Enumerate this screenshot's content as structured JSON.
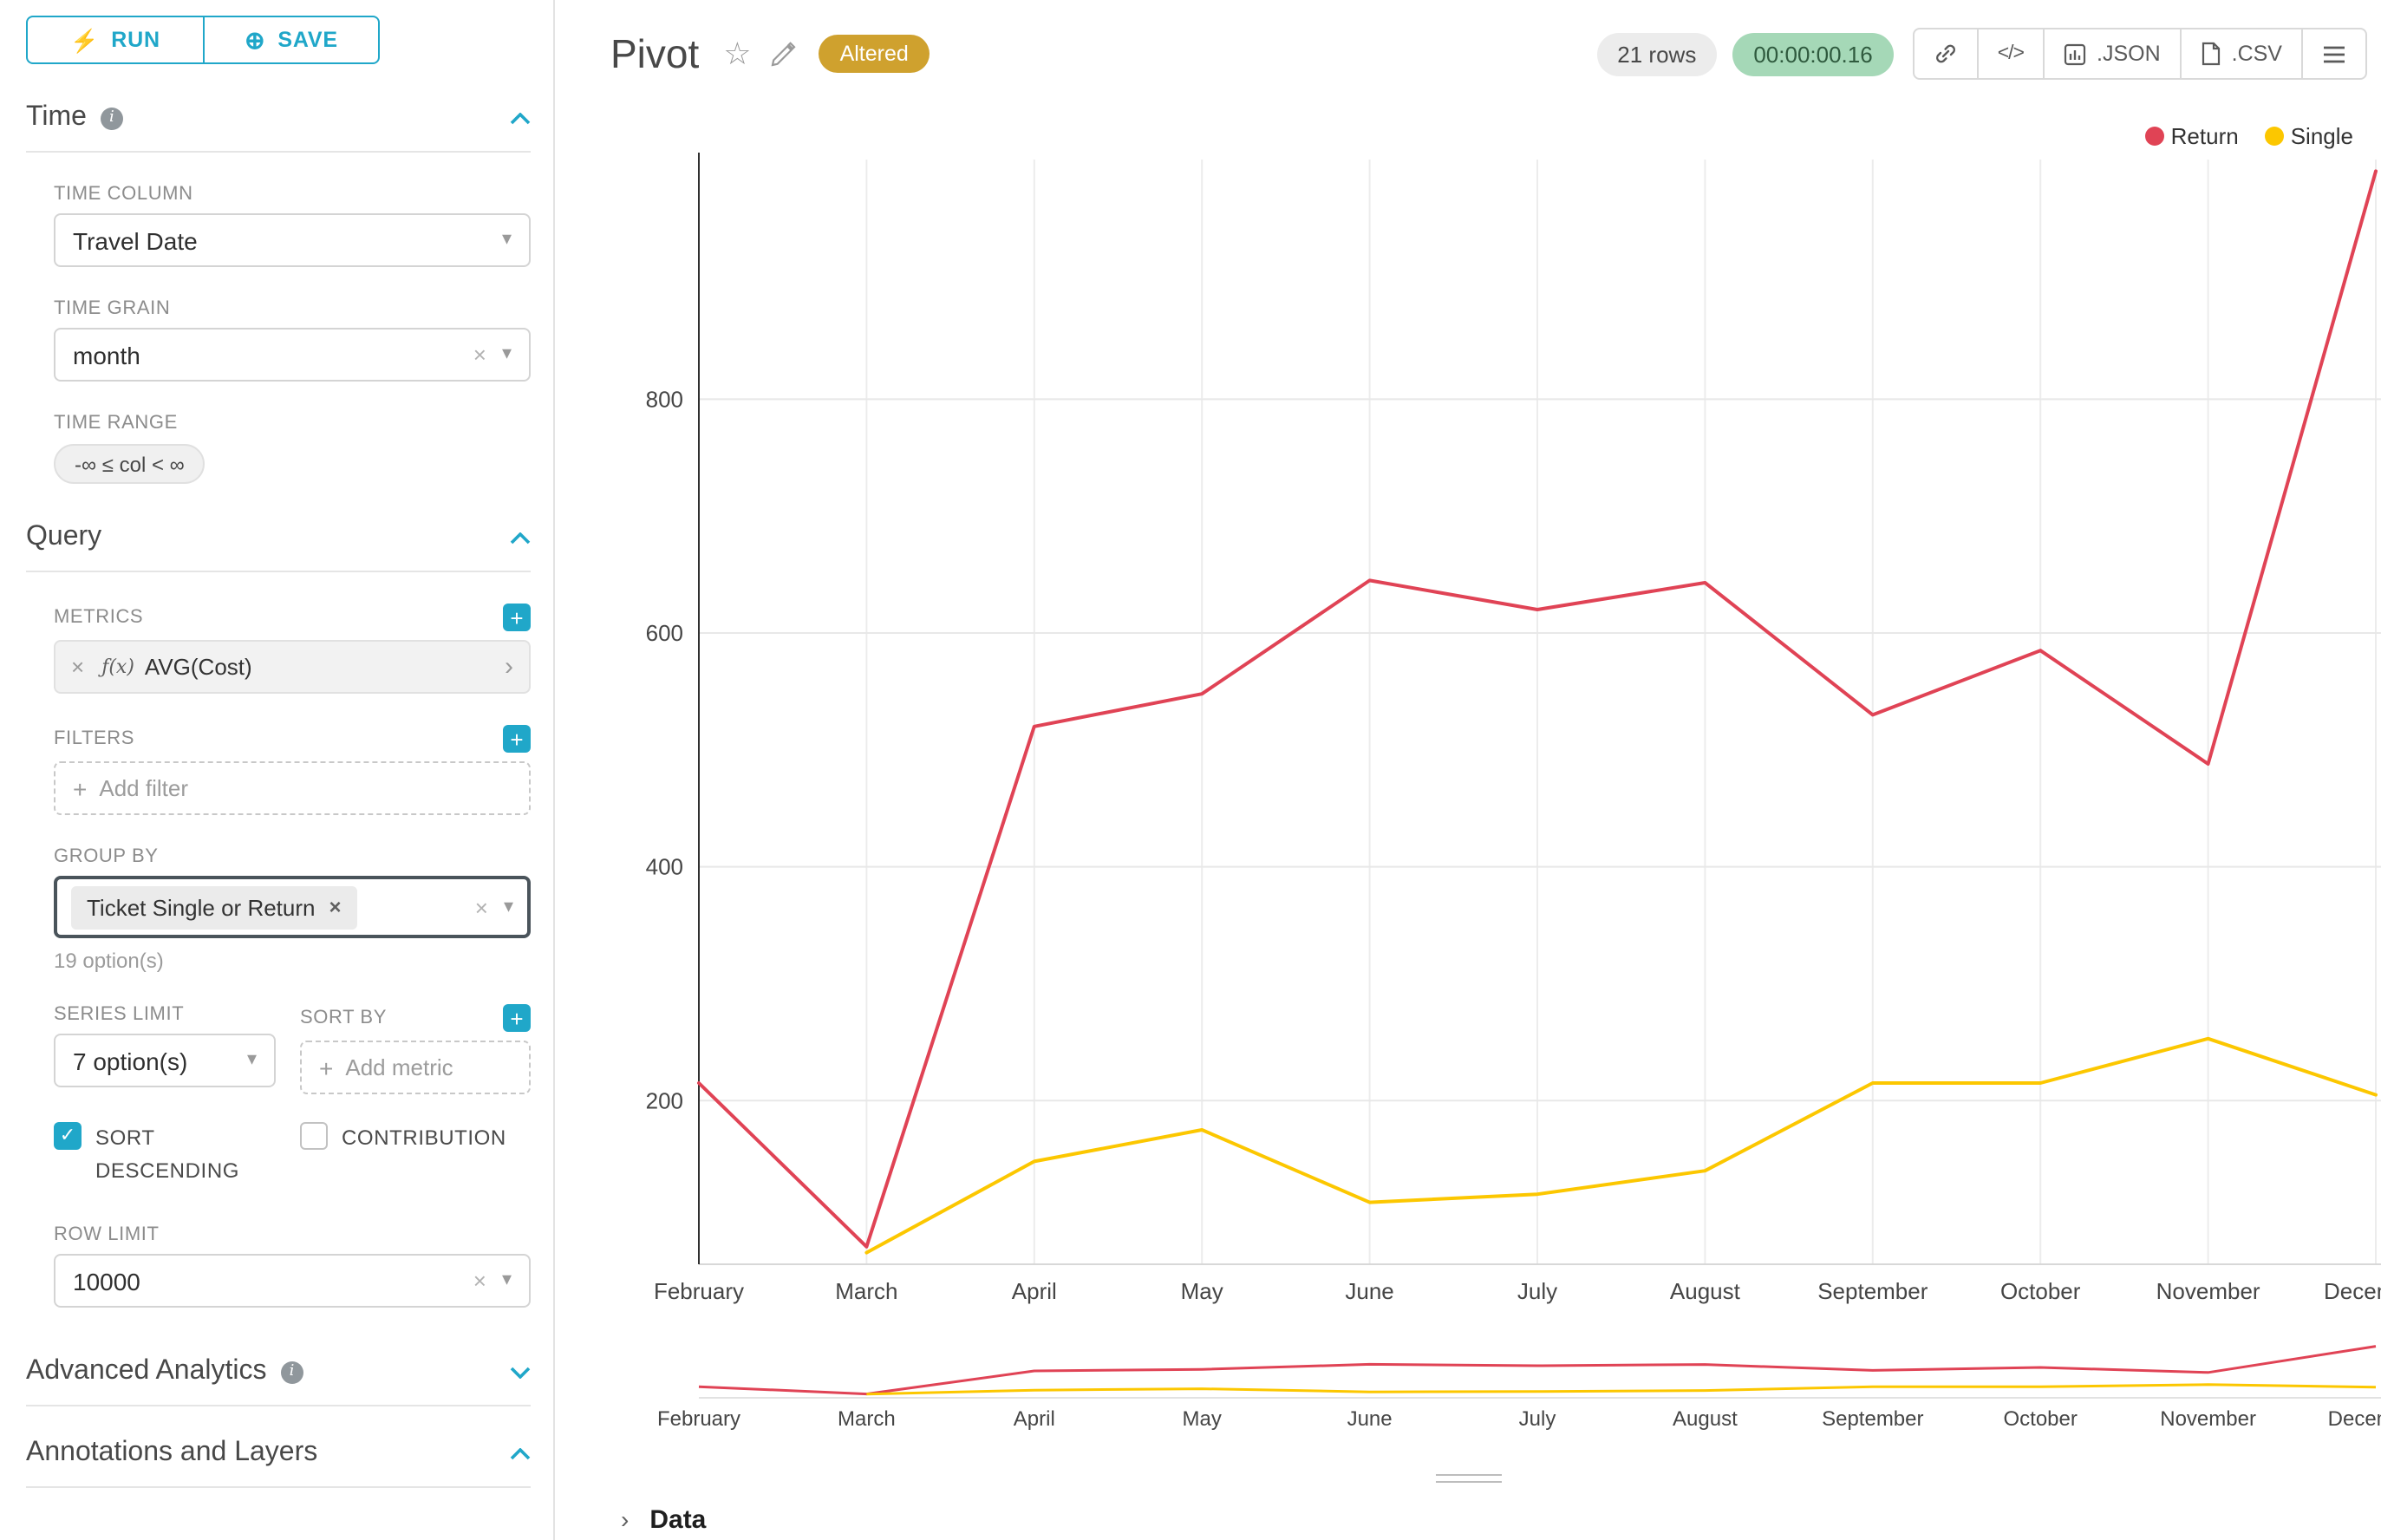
{
  "colors": {
    "accent": "#20a7c9",
    "return": "#e04355",
    "single": "#fcc700",
    "altered_badge": "#cfa12e"
  },
  "icons": {
    "lightning": "⚡",
    "save": "⊕",
    "info": "i",
    "close": "×",
    "caret_down": "▾",
    "caret_right": "›",
    "plus": "+",
    "check": "✓",
    "star": "☆",
    "code": "</>"
  },
  "sidebar": {
    "run_button": "RUN",
    "save_button": "SAVE",
    "time": {
      "title": "Time",
      "time_column_label": "TIME COLUMN",
      "time_column_value": "Travel Date",
      "time_grain_label": "TIME GRAIN",
      "time_grain_value": "month",
      "time_range_label": "TIME RANGE",
      "time_range_value": "-∞ ≤ col < ∞"
    },
    "query": {
      "title": "Query",
      "metrics_label": "METRICS",
      "metric_fx": "ƒ(x)",
      "metric_name": "AVG(Cost)",
      "filters_label": "FILTERS",
      "add_filter": "Add filter",
      "group_by_label": "GROUP BY",
      "group_by_value": "Ticket Single or Return",
      "group_by_hint": "19 option(s)",
      "series_limit_label": "SERIES LIMIT",
      "series_limit_value": "7 option(s)",
      "sort_by_label": "SORT BY",
      "add_metric": "Add metric",
      "sort_descending": "SORT DESCENDING",
      "contribution": "CONTRIBUTION",
      "row_limit_label": "ROW LIMIT",
      "row_limit_value": "10000"
    },
    "advanced_title": "Advanced Analytics",
    "annotations_title": "Annotations and Layers"
  },
  "header": {
    "title": "Pivot",
    "altered_badge": "Altered",
    "rows_badge": "21 rows",
    "timer": "00:00:00.16",
    "json_button": ".JSON",
    "csv_button": ".CSV"
  },
  "data_panel": {
    "title": "Data"
  },
  "chart_data": {
    "type": "line",
    "title": "",
    "x": [
      "February",
      "March",
      "April",
      "May",
      "June",
      "July",
      "August",
      "September",
      "October",
      "November",
      "December"
    ],
    "series": [
      {
        "name": "Return",
        "color": "#e04355",
        "values": [
          215,
          75,
          520,
          548,
          645,
          620,
          643,
          530,
          585,
          488,
          995
        ]
      },
      {
        "name": "Single",
        "color": "#fcc700",
        "values": [
          null,
          70,
          148,
          175,
          113,
          120,
          140,
          215,
          215,
          253,
          205
        ]
      }
    ],
    "ylim": [
      60,
      1005
    ],
    "yticks": [
      200,
      400,
      600,
      800
    ],
    "grid": true,
    "legend_position": "top-right",
    "has_mini_range_chart": true
  }
}
